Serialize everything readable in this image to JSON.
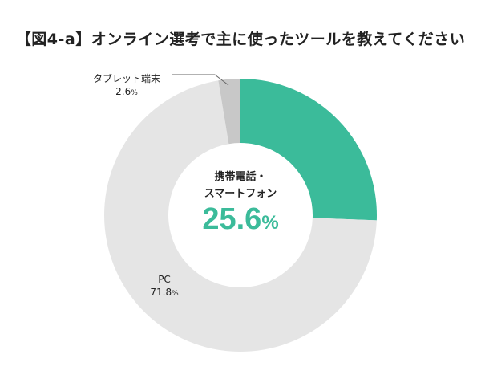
{
  "chart_data": {
    "type": "pie",
    "title": "【図4-a】オンライン選考で主に使ったツールを教えてください",
    "donut": true,
    "slices": [
      {
        "name": "携帯電話・スマートフォン",
        "value": 25.6,
        "label": "25.6",
        "color": "#3bbb9a"
      },
      {
        "name": "PC",
        "value": 71.8,
        "label": "71.8",
        "color": "#e5e5e5"
      },
      {
        "name": "タブレット端末",
        "value": 2.6,
        "label": "2.6",
        "color": "#c8c8c8"
      }
    ],
    "unit": "%",
    "center_name_lines": [
      "携帯電話・",
      "スマートフォン"
    ]
  }
}
